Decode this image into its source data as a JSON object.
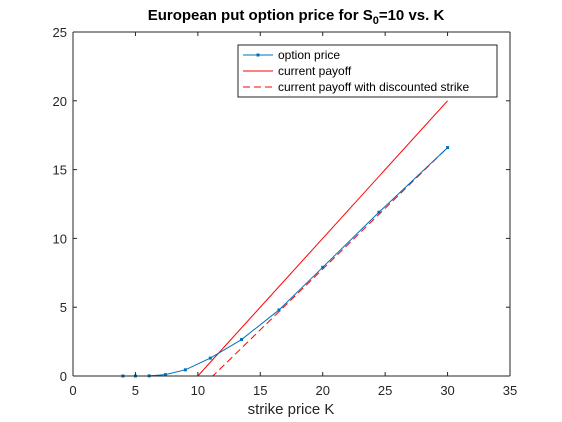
{
  "chart_data": {
    "type": "line",
    "title": {
      "prefix": "European put option price for S",
      "subscript": "0",
      "suffix": "=10 vs. K"
    },
    "xlabel": "strike price K",
    "ylabel": "",
    "xlim": [
      0,
      35
    ],
    "ylim": [
      0,
      25
    ],
    "xticks": [
      0,
      5,
      10,
      15,
      20,
      25,
      30,
      35
    ],
    "yticks": [
      0,
      5,
      10,
      15,
      20,
      25
    ],
    "grid": false,
    "legend_position": "top-right",
    "series": [
      {
        "name": "option price",
        "color": "#0072BD",
        "style": "solid",
        "marker": "point",
        "x": [
          4,
          5,
          6.1,
          7.4,
          9,
          11,
          13.5,
          16.5,
          20,
          24.5,
          30
        ],
        "y": [
          0.0,
          0.0,
          0.01,
          0.1,
          0.45,
          1.3,
          2.65,
          4.8,
          7.9,
          11.9,
          16.6
        ]
      },
      {
        "name": "current payoff",
        "color": "#FF0000",
        "style": "solid",
        "marker": "none",
        "x": [
          4,
          10,
          30
        ],
        "y": [
          0,
          0,
          20
        ]
      },
      {
        "name": "current payoff with discounted strike",
        "color": "#FF0000",
        "style": "dashed",
        "marker": "none",
        "x": [
          4,
          11.2,
          30
        ],
        "y": [
          0,
          0,
          16.6
        ]
      }
    ]
  }
}
